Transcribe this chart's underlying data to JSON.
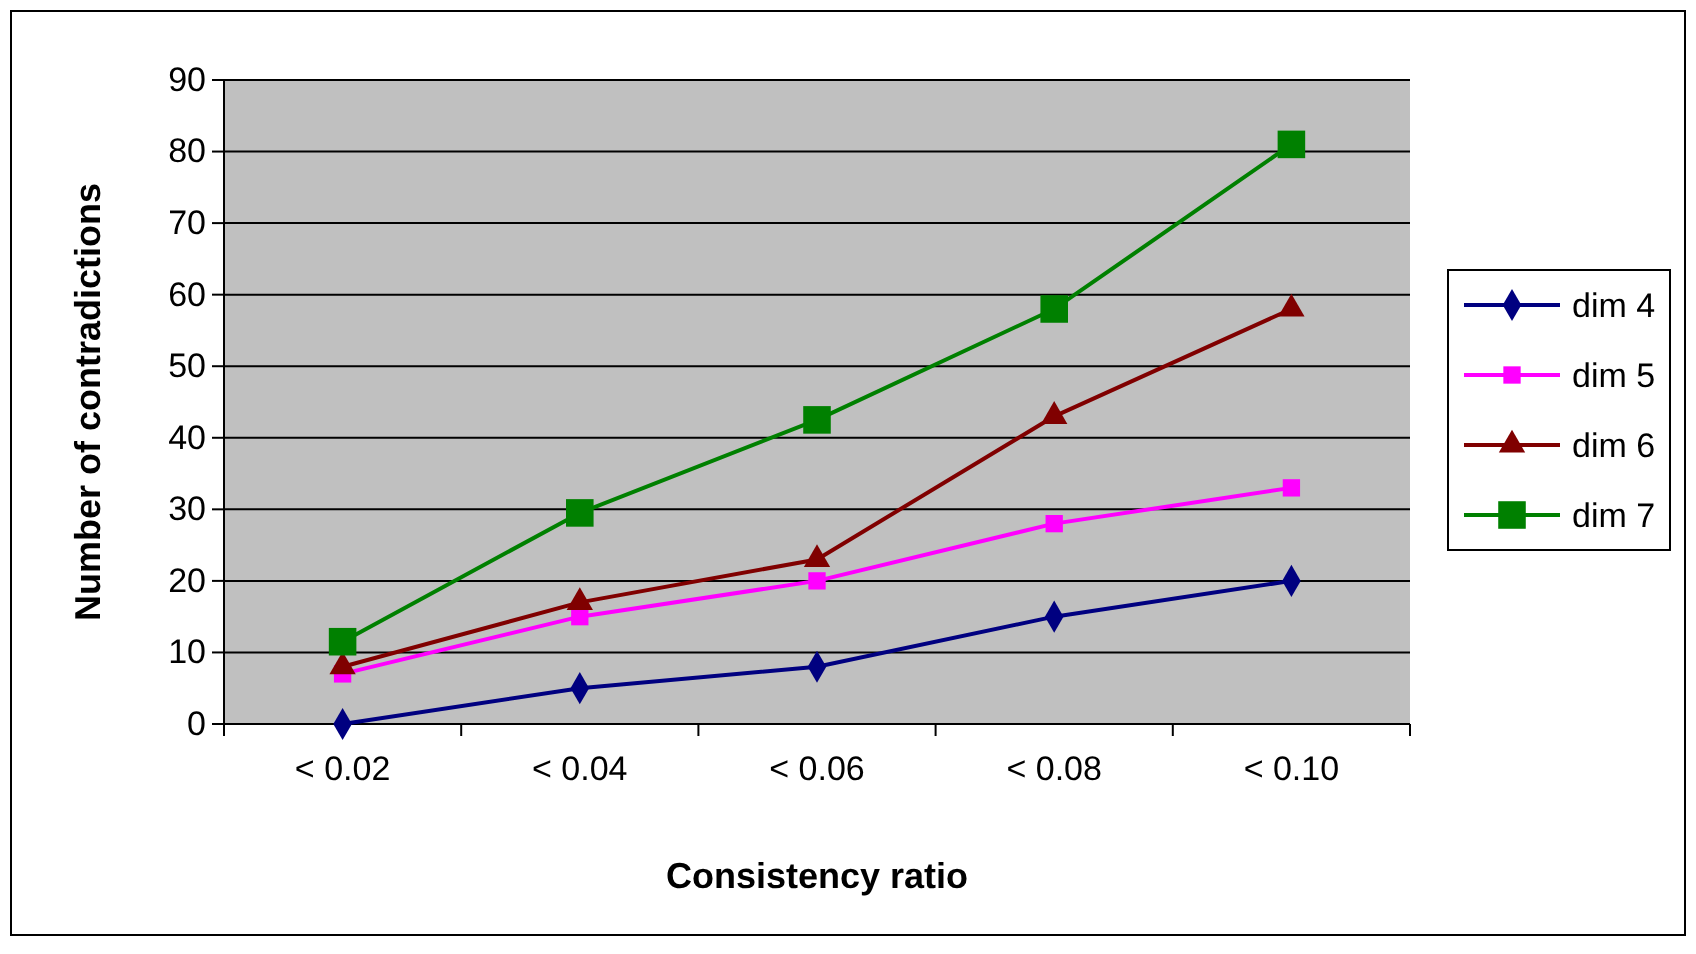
{
  "chart_data": {
    "type": "line",
    "xlabel": "Consistency ratio",
    "ylabel": "Number of contradictions",
    "categories": [
      "< 0.02",
      "< 0.04",
      "< 0.06",
      "< 0.08",
      "< 0.10"
    ],
    "ylim": [
      0,
      90
    ],
    "yticks": [
      0,
      10,
      20,
      30,
      40,
      50,
      60,
      70,
      80,
      90
    ],
    "grid": "y",
    "legend": "right",
    "series": [
      {
        "name": "dim 4",
        "color": "#000080",
        "marker": "diamond",
        "values": [
          0,
          5,
          8,
          15,
          20
        ]
      },
      {
        "name": "dim 5",
        "color": "#ff00ff",
        "marker": "square",
        "values": [
          7,
          15,
          20,
          28,
          33
        ]
      },
      {
        "name": "dim 6",
        "color": "#800000",
        "marker": "triangle",
        "values": [
          8,
          17,
          23,
          43,
          58
        ]
      },
      {
        "name": "dim 7",
        "color": "#008000",
        "marker": "square",
        "values": [
          11.5,
          29.5,
          42.5,
          58,
          81
        ]
      }
    ]
  }
}
